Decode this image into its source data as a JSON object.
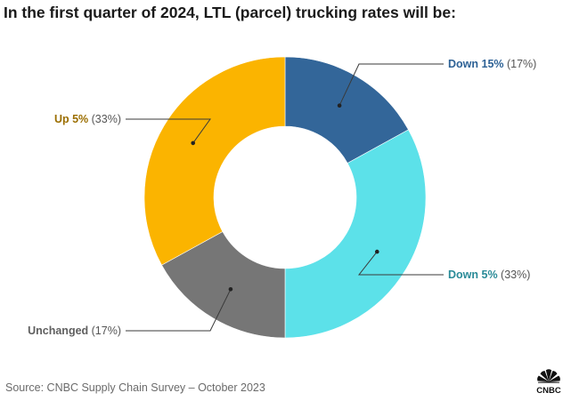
{
  "chart_data": {
    "type": "pie",
    "variant": "donut",
    "title": "In the first quarter of 2024, LTL (parcel) trucking rates will be:",
    "slices": [
      {
        "label": "Down 15%",
        "percent_label": "(17%)",
        "value": 17,
        "color": "#336699",
        "label_color": "#2e6296"
      },
      {
        "label": "Down 5%",
        "percent_label": "(33%)",
        "value": 33,
        "color": "#5ce1e9",
        "label_color": "#2a8b98"
      },
      {
        "label": "Unchanged",
        "percent_label": "(17%)",
        "value": 17,
        "color": "#767676",
        "label_color": "#5f5f5f"
      },
      {
        "label": "Up 5%",
        "percent_label": "(33%)",
        "value": 33,
        "color": "#fbb400",
        "label_color": "#9b6e00"
      }
    ],
    "source": "Source: CNBC Supply Chain Survey – October 2023"
  },
  "brand": {
    "logo_name": "CNBC",
    "logo_text": "CNBC"
  }
}
